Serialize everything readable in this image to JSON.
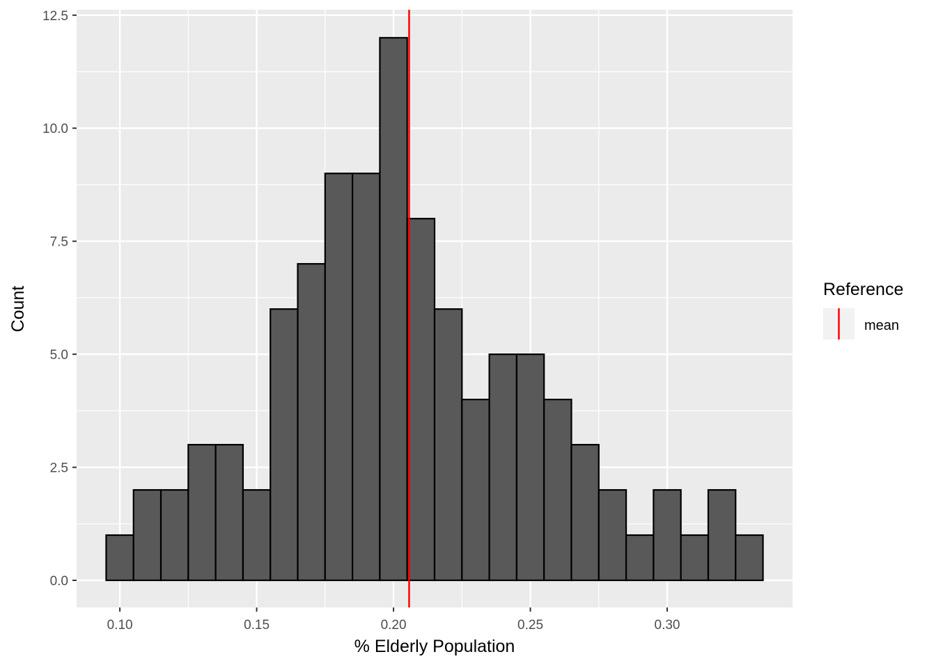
{
  "chart_data": {
    "type": "bar",
    "subtype": "histogram",
    "xlabel": "% Elderly Population",
    "ylabel": "Count",
    "xlim": [
      0.0842,
      0.3458
    ],
    "ylim": [
      -0.6,
      12.62
    ],
    "x_ticks": [
      0.1,
      0.15,
      0.2,
      0.25,
      0.3
    ],
    "x_tick_labels": [
      "0.10",
      "0.15",
      "0.20",
      "0.25",
      "0.30"
    ],
    "y_ticks": [
      0,
      2.5,
      5,
      7.5,
      10,
      12.5
    ],
    "y_tick_labels": [
      "0.0",
      "2.5",
      "5.0",
      "7.5",
      "10.0",
      "12.5"
    ],
    "bin_width": 0.01,
    "bin_start": 0.095,
    "counts": [
      1,
      2,
      2,
      3,
      3,
      2,
      6,
      7,
      9,
      9,
      12,
      8,
      6,
      4,
      5,
      5,
      4,
      3,
      2,
      1,
      2,
      1,
      2,
      1
    ],
    "reference_line": {
      "name": "mean",
      "x": 0.2057,
      "color": "#ff0000"
    },
    "legend": {
      "title": "Reference",
      "items": [
        "mean"
      ],
      "position": "right"
    },
    "grid": true,
    "colors": {
      "panel": "#ebebeb",
      "grid": "#ffffff",
      "bar_fill": "#595959",
      "bar_edge": "#000000"
    }
  }
}
